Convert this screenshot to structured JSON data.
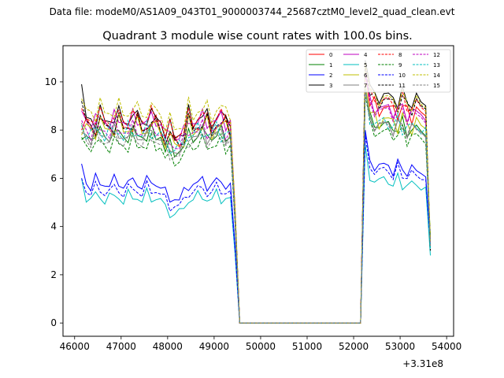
{
  "header": {
    "datafile": "Data file: modeM0/AS1A09_043T01_9000003744_25687cztM0_level2_quad_clean.evt"
  },
  "chart_data": {
    "type": "line",
    "title": "Quadrant 3 module wise count rates with 100.0s bins.",
    "xlabel": "",
    "ylabel": "",
    "x_offset_label": "+3.31e8",
    "xlim": [
      45750,
      54150
    ],
    "ylim": [
      -0.55,
      11.5
    ],
    "xticks": [
      46000,
      47000,
      48000,
      49000,
      50000,
      51000,
      52000,
      53000,
      54000
    ],
    "xtick_labels": [
      "46000",
      "47000",
      "48000",
      "49000",
      "50000",
      "51000",
      "52000",
      "53000",
      "54000"
    ],
    "yticks": [
      0,
      2,
      4,
      6,
      8,
      10
    ],
    "ytick_labels": [
      "0",
      "2",
      "4",
      "6",
      "8",
      "10"
    ],
    "legend_position": "top-right",
    "x_segments": {
      "seg1": [
        46150,
        49350,
        100
      ],
      "seg2": [
        52250,
        53550,
        100
      ]
    },
    "series": [
      {
        "name": "0",
        "color": "#ff0000",
        "dash": "solid",
        "seg1": 8.2,
        "seg2": 9.0,
        "amp": 0.55,
        "phase": 0.0,
        "start": 8.0,
        "end": 3.2
      },
      {
        "name": "1",
        "color": "#008000",
        "dash": "solid",
        "seg1": 7.8,
        "seg2": 8.3,
        "amp": 0.5,
        "phase": 1.1,
        "start": 7.6,
        "end": 3.6
      },
      {
        "name": "2",
        "color": "#0000ff",
        "dash": "solid",
        "seg1": 5.8,
        "seg2": 6.6,
        "amp": 0.45,
        "phase": 2.3,
        "start": 6.6,
        "end": 3.4
      },
      {
        "name": "3",
        "color": "#000000",
        "dash": "solid",
        "seg1": 8.5,
        "seg2": 9.5,
        "amp": 0.6,
        "phase": 0.6,
        "start": 9.9,
        "end": 3.1
      },
      {
        "name": "4",
        "color": "#bf00bf",
        "dash": "solid",
        "seg1": 8.4,
        "seg2": 9.0,
        "amp": 0.5,
        "phase": 1.7,
        "start": 8.8,
        "end": 3.3
      },
      {
        "name": "5",
        "color": "#00bfbf",
        "dash": "solid",
        "seg1": 5.2,
        "seg2": 6.0,
        "amp": 0.4,
        "phase": 2.9,
        "start": 6.0,
        "end": 2.8
      },
      {
        "name": "6",
        "color": "#bfbf00",
        "dash": "solid",
        "seg1": 8.1,
        "seg2": 8.5,
        "amp": 0.6,
        "phase": 0.3,
        "start": 7.8,
        "end": 3.5
      },
      {
        "name": "7",
        "color": "#808080",
        "dash": "solid",
        "seg1": 7.8,
        "seg2": 8.3,
        "amp": 0.5,
        "phase": 2.0,
        "start": 7.9,
        "end": 3.4
      },
      {
        "name": "8",
        "color": "#ff0000",
        "dash": "dashed",
        "seg1": 8.5,
        "seg2": 9.3,
        "amp": 0.55,
        "phase": 0.9,
        "start": 8.9,
        "end": 3.2
      },
      {
        "name": "9",
        "color": "#008000",
        "dash": "dashed",
        "seg1": 7.4,
        "seg2": 8.0,
        "amp": 0.5,
        "phase": 1.4,
        "start": 7.7,
        "end": 3.6
      },
      {
        "name": "10",
        "color": "#0000ff",
        "dash": "dashed",
        "seg1": 5.5,
        "seg2": 6.4,
        "amp": 0.45,
        "phase": 2.6,
        "start": 6.0,
        "end": 3.3
      },
      {
        "name": "11",
        "color": "#000000",
        "dash": "dashed",
        "seg1": 8.2,
        "seg2": 9.3,
        "amp": 0.55,
        "phase": 0.2,
        "start": 9.2,
        "end": 3.0
      },
      {
        "name": "12",
        "color": "#bf00bf",
        "dash": "dashed",
        "seg1": 8.0,
        "seg2": 8.9,
        "amp": 0.5,
        "phase": 1.9,
        "start": 8.4,
        "end": 3.3
      },
      {
        "name": "13",
        "color": "#00bfbf",
        "dash": "dashed",
        "seg1": 7.9,
        "seg2": 8.4,
        "amp": 0.5,
        "phase": 3.1,
        "start": 8.2,
        "end": 3.1
      },
      {
        "name": "14",
        "color": "#bfbf00",
        "dash": "dashed",
        "seg1": 8.8,
        "seg2": 9.4,
        "amp": 0.6,
        "phase": 0.5,
        "start": 9.3,
        "end": 3.4
      },
      {
        "name": "15",
        "color": "#808080",
        "dash": "dashed",
        "seg1": 7.6,
        "seg2": 8.3,
        "amp": 0.5,
        "phase": 2.4,
        "start": 8.3,
        "end": 3.2
      }
    ]
  }
}
